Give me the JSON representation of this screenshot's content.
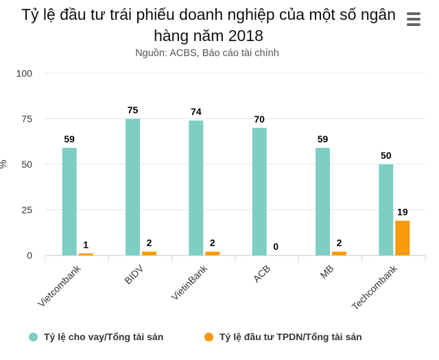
{
  "title": "Tỷ lệ đầu tư trái phiếu doanh nghiệp của một số ngân hàng năm 2018",
  "subtitle": "Nguồn: ACBS, Báo cáo tài chính",
  "menu_icon": "hamburger-menu-icon",
  "colors": {
    "series1": "#7ecec4",
    "series2": "#f79a0e",
    "grid": "#e6e6e6",
    "axis": "#ccd6eb"
  },
  "chart_data": {
    "type": "bar",
    "title": "Tỷ lệ đầu tư trái phiếu doanh nghiệp của một số ngân hàng năm 2018",
    "subtitle": "Nguồn: ACBS, Báo cáo tài chính",
    "ylabel": "%",
    "xlabel": "",
    "ylim": [
      0,
      100
    ],
    "yticks": [
      0,
      25,
      50,
      75,
      100
    ],
    "grid": true,
    "legend": "bottom",
    "categories": [
      "Vietcombank",
      "BIDV",
      "VietinBank",
      "ACB",
      "MB",
      "Techcombank"
    ],
    "series": [
      {
        "name": "Tỷ lệ cho vay/Tổng tài sản",
        "values": [
          59,
          75,
          74,
          70,
          59,
          50
        ]
      },
      {
        "name": "Tỷ lệ đầu tư TPDN/Tổng tài sản",
        "values": [
          1,
          2,
          2,
          0,
          2,
          19
        ]
      }
    ]
  }
}
